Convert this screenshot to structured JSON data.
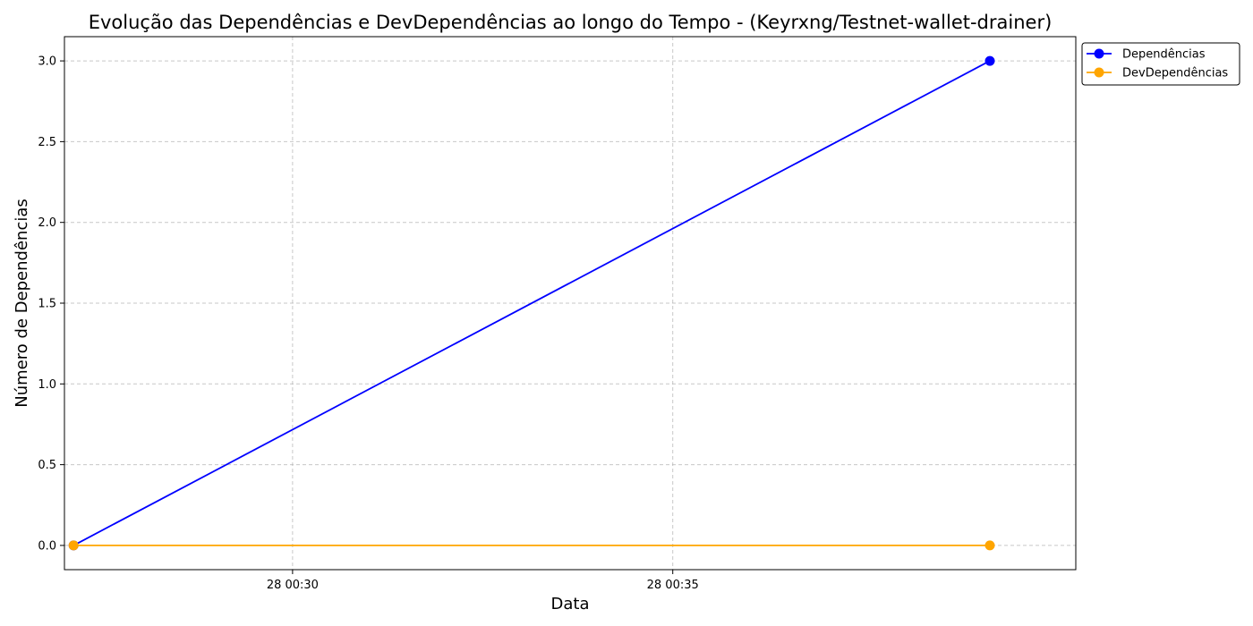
{
  "chart_data": {
    "type": "line",
    "title": "Evolução das Dependências e DevDependências ao longo do Tempo - (Keyrxng/Testnet-wallet-drainer)",
    "xlabel": "Data",
    "ylabel": "Número de Dependências",
    "x_tick_labels": [
      "28 00:30",
      "28 00:35"
    ],
    "y_tick_labels": [
      "0.0",
      "0.5",
      "1.0",
      "1.5",
      "2.0",
      "2.5",
      "3.0"
    ],
    "x_axis_range_minutes": [
      27.0,
      40.3
    ],
    "x_tick_minutes": [
      30,
      35
    ],
    "ylim": [
      -0.15,
      3.15
    ],
    "y_ticks": [
      0,
      0.5,
      1,
      1.5,
      2,
      2.5,
      3
    ],
    "grid": true,
    "legend_placement": "outside top-right",
    "series": [
      {
        "name": "Dependências",
        "color": "#0000ff",
        "x_minutes": [
          27.12,
          39.17
        ],
        "values": [
          0,
          3
        ]
      },
      {
        "name": "DevDependências",
        "color": "#ffa500",
        "x_minutes": [
          27.12,
          39.17
        ],
        "values": [
          0,
          0
        ]
      }
    ]
  }
}
